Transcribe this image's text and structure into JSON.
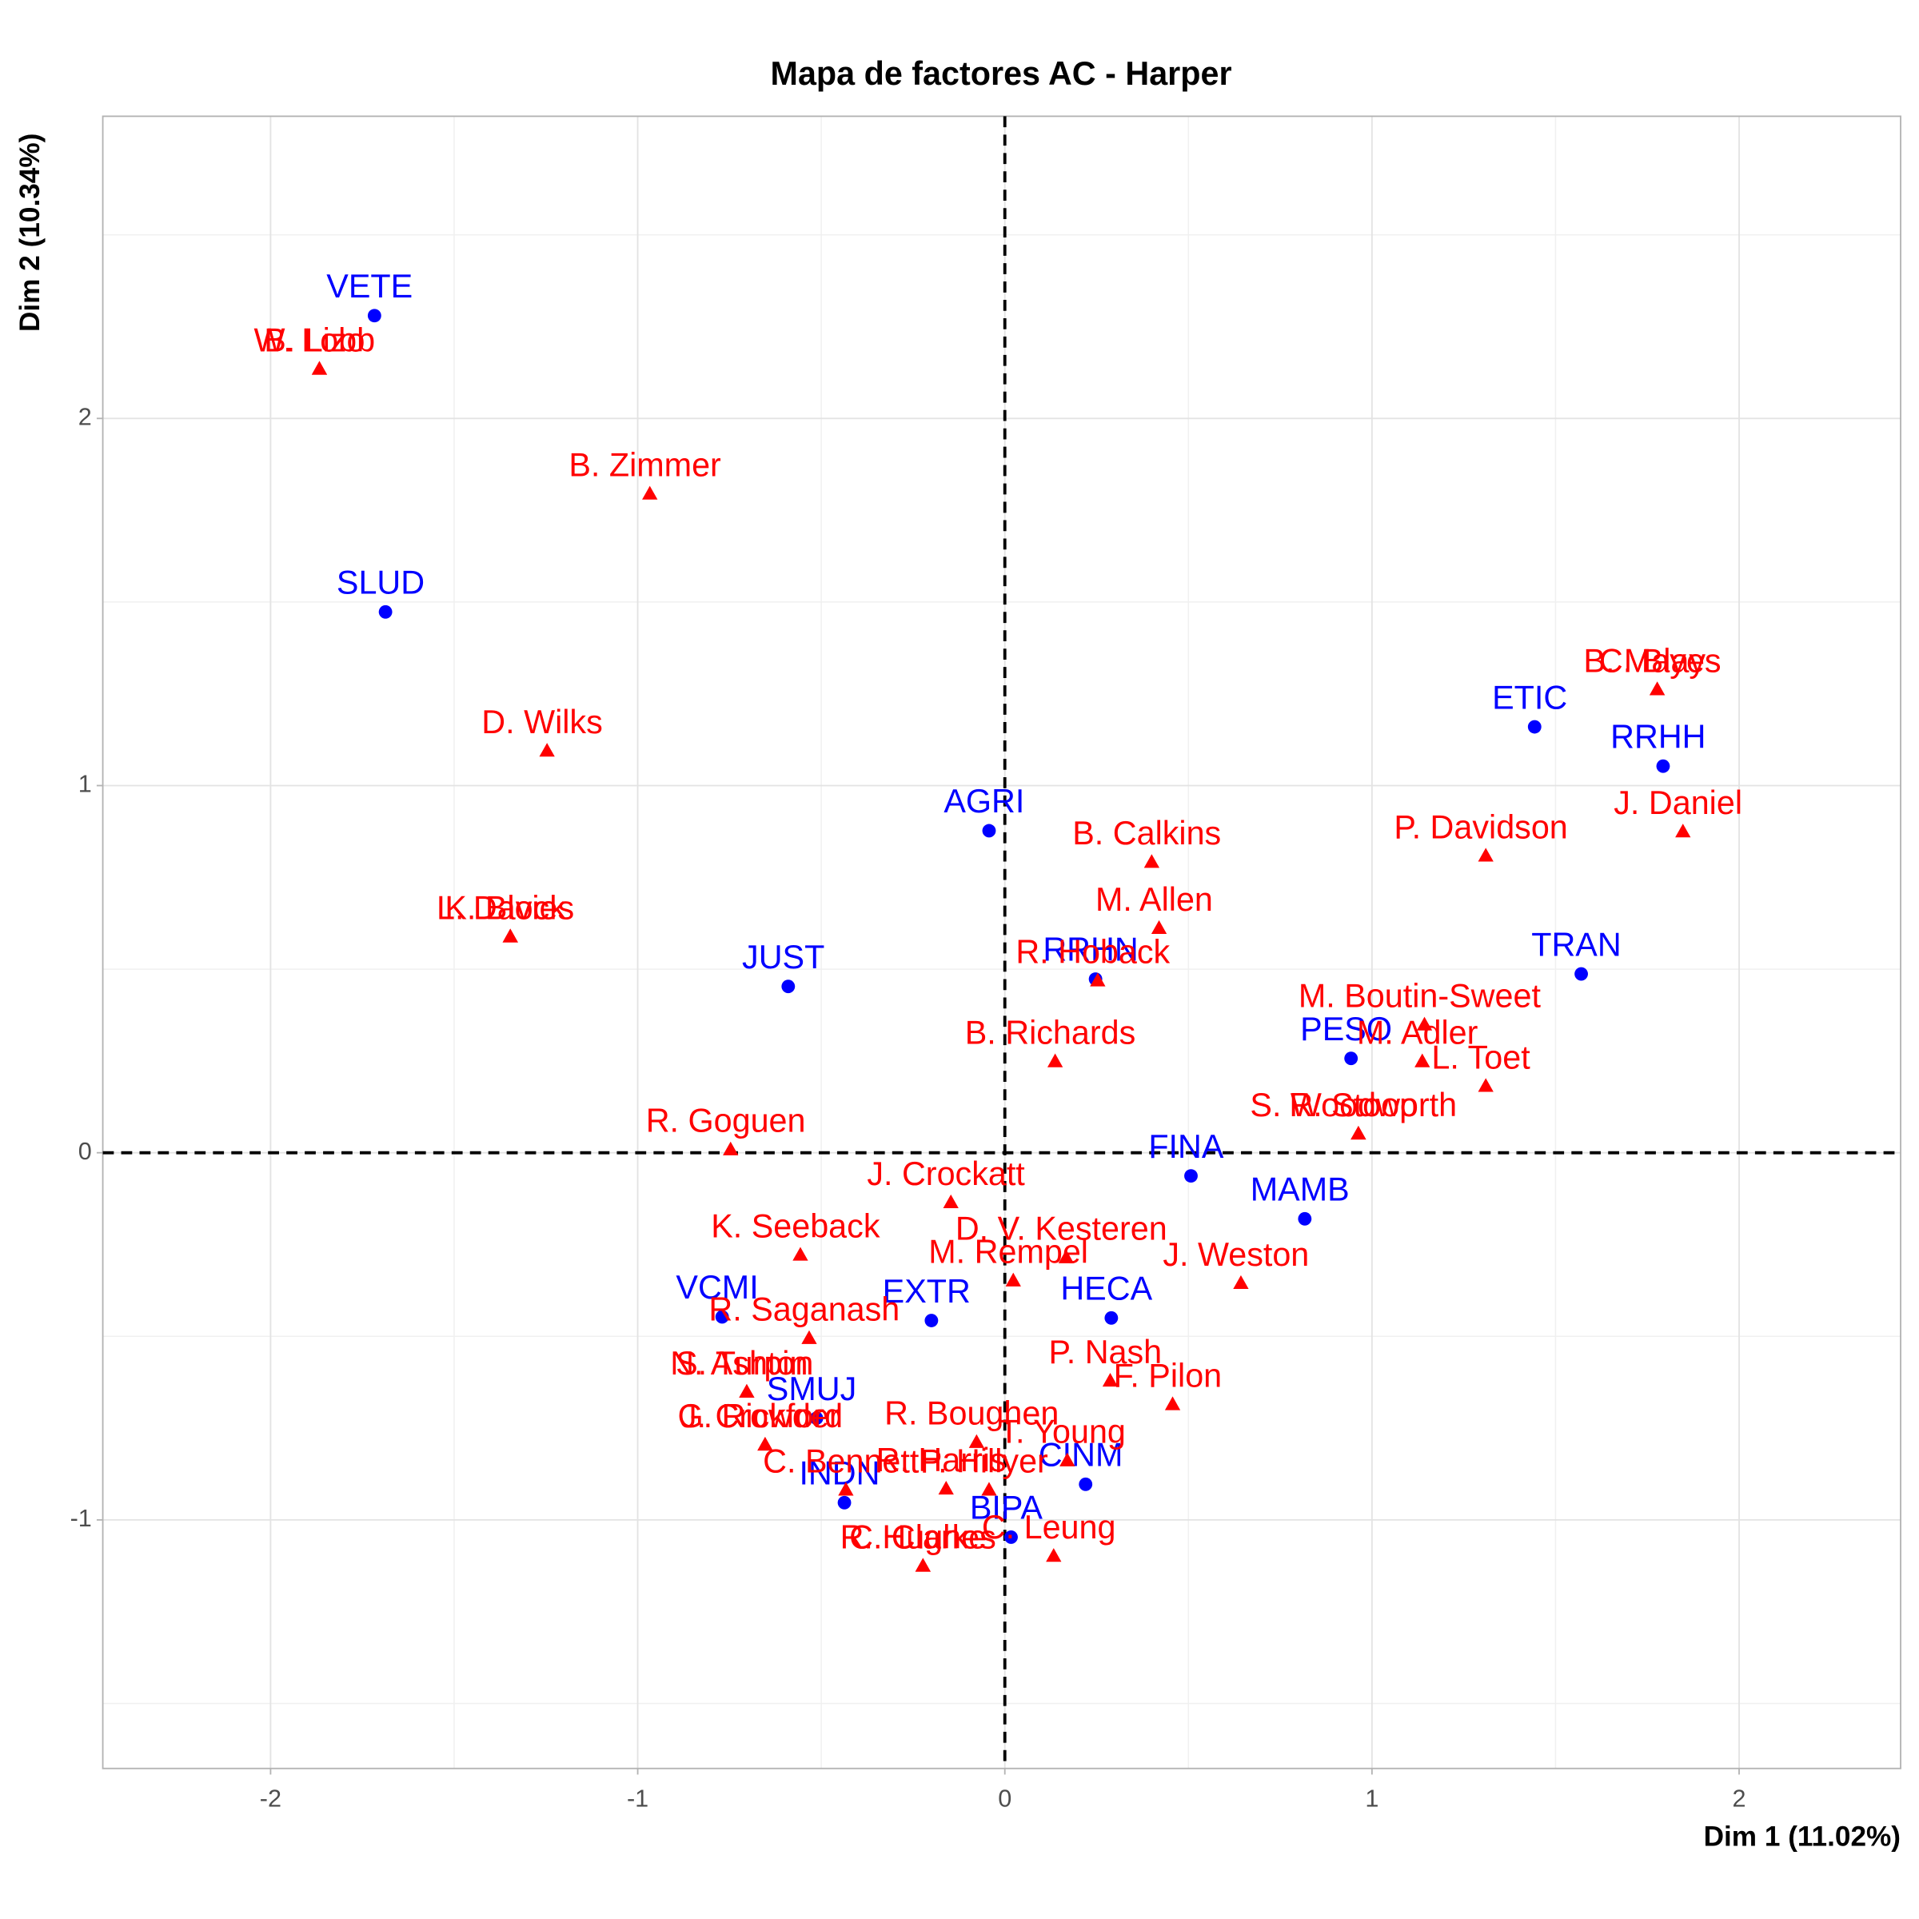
{
  "chart_data": {
    "type": "scatter",
    "title": "Mapa de factores AC - Harper",
    "x_label": "Dim 1 (11.02%)",
    "y_label": "Dim 2 (10.34%)",
    "xlim": [
      -2.457,
      2.44
    ],
    "ylim": [
      -1.677,
      2.823
    ],
    "xticks": [
      -2,
      -1,
      0,
      1,
      2
    ],
    "yticks": [
      -1,
      0,
      1,
      2
    ],
    "grid": true,
    "series": [
      {
        "color": "#0000ff",
        "marker": "circle",
        "labels": [
          "VETE",
          "SLUD",
          "AGRI",
          "JUST",
          "RRHN",
          "ETIC",
          "RRHH",
          "TRAN",
          "PESO",
          "FINA",
          "MAMB",
          "HECA",
          "EXTR",
          "VCMI",
          "SMUJ",
          "INDN",
          "CINM",
          "BIPA"
        ],
        "x": [
          -1.717,
          -1.687,
          -0.043,
          -0.59,
          0.247,
          1.443,
          1.793,
          1.57,
          0.943,
          0.507,
          0.817,
          0.29,
          -0.2,
          -0.77,
          -0.513,
          -0.437,
          0.22,
          0.017
        ],
        "y": [
          2.28,
          1.473,
          0.877,
          0.453,
          0.473,
          1.16,
          1.053,
          0.487,
          0.257,
          -0.063,
          -0.18,
          -0.45,
          -0.457,
          -0.447,
          -0.723,
          -0.953,
          -0.903,
          -1.047
        ]
      },
      {
        "color": "#ff0000",
        "marker": "triangle",
        "labels": [
          "W. Lobb",
          "B. Lizo",
          "B. Zimmer",
          "D. Wilks",
          "L. Davies",
          "K. Block",
          "B. Calkins",
          "M. Allen",
          "R. Hoback",
          "B. Richards",
          "R. Goguen",
          "P. Davidson",
          "J. Daniel",
          "C. Blay",
          "B. Mayes",
          "M. Boutin-Sweet",
          "M. Adler",
          "L. Toet",
          "S. Woodworth",
          "R. Stoop",
          "J. Crockatt",
          "K. Seeback",
          "D. V. Kesteren",
          "M. Rempel",
          "J. Weston",
          "R. Saganash",
          "P. Nash",
          "F. Pilon",
          "N. Ashton",
          "S. Turpin",
          "G. Rickford",
          "J. Crowder",
          "R. Boughen",
          "T. Young",
          "C. Bennett",
          "R. Harris",
          "P. Hillyer",
          "C. Leung",
          "R. Hughes",
          "C. Clarke"
        ],
        "x": [
          -1.867,
          -1.867,
          -0.967,
          -1.247,
          -1.347,
          -1.347,
          0.4,
          0.42,
          0.253,
          0.137,
          -0.747,
          1.31,
          1.847,
          1.777,
          1.777,
          1.143,
          1.137,
          1.31,
          0.963,
          0.963,
          -0.147,
          -0.557,
          0.167,
          0.023,
          0.643,
          -0.533,
          0.287,
          0.457,
          -0.703,
          -0.703,
          -0.653,
          -0.653,
          -0.077,
          0.17,
          -0.433,
          -0.16,
          -0.043,
          0.133,
          -0.223,
          -0.223
        ],
        "y": [
          2.133,
          2.133,
          1.793,
          1.093,
          0.587,
          0.587,
          0.79,
          0.61,
          0.467,
          0.247,
          0.007,
          0.807,
          0.873,
          1.26,
          1.26,
          0.347,
          0.247,
          0.18,
          0.05,
          0.05,
          -0.137,
          -0.28,
          -0.287,
          -0.35,
          -0.357,
          -0.507,
          -0.623,
          -0.687,
          -0.653,
          -0.653,
          -0.797,
          -0.797,
          -0.79,
          -0.84,
          -0.92,
          -0.917,
          -0.92,
          -1.1,
          -1.127,
          -1.127
        ]
      }
    ]
  }
}
